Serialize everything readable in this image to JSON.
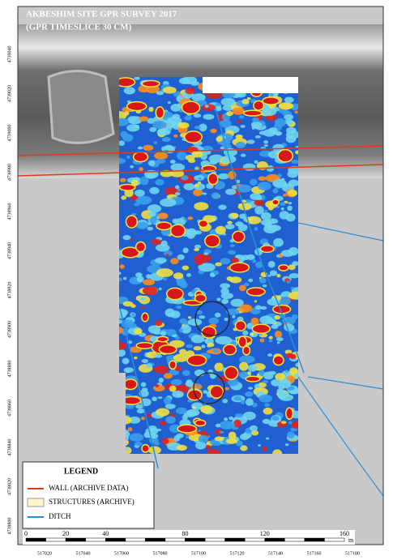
{
  "title": {
    "line1": "AKBESHIM SITE GPR SURVEY 2017",
    "line2": "(GPR TIMESLICE 30 CM)"
  },
  "legend": {
    "title": "LEGEND",
    "items": [
      {
        "label": "WALL (ARCHIVE DATA)"
      },
      {
        "label": "STRUCTURES (ARCHIVE)"
      },
      {
        "label": "DITCH"
      }
    ]
  },
  "scale_bar": {
    "ticks": [
      0,
      20,
      40,
      80,
      120,
      160
    ],
    "unit": "m"
  },
  "grid_labels": {
    "eastings": [
      517020,
      517040,
      517060,
      517080,
      517100,
      517120,
      517140,
      517160,
      517180
    ],
    "northings": [
      4739040,
      4739020,
      4739000,
      4738980,
      4738960,
      4738940,
      4738920,
      4738900,
      4738880,
      4738860,
      4738840,
      4738820,
      4738800
    ]
  }
}
